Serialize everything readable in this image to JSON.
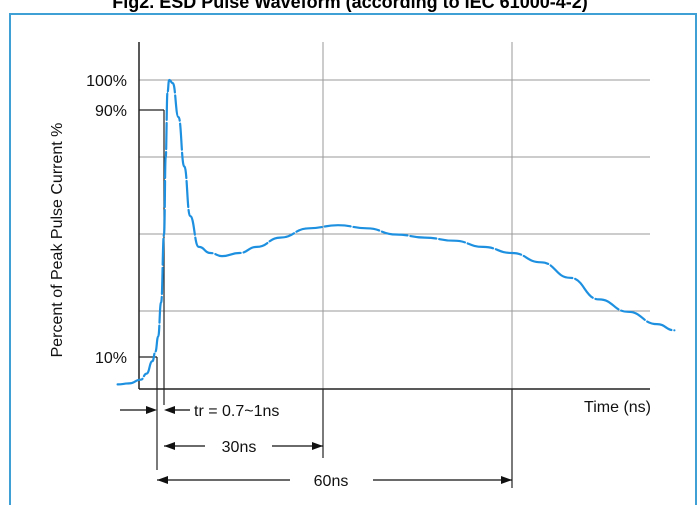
{
  "chart_data": {
    "type": "line",
    "title": "Fig2. ESD Pulse Waveform (according to IEC 61000-4-2)",
    "ylabel": "Percent of Peak Pulse Current %",
    "xlabel": "Time (ns)",
    "yticks": [
      "100%",
      "90%",
      "10%"
    ],
    "ytick_values": [
      100,
      90,
      10
    ],
    "xlim": [
      -10,
      130
    ],
    "ylim": [
      0,
      110
    ],
    "grid": true,
    "series": [
      {
        "color": "#1e90e0",
        "x": [
          -8,
          -6,
          -4,
          -3,
          -2,
          -1.5,
          -1,
          -0.5,
          0,
          0.3,
          0.6,
          0.9,
          1.5,
          2.5,
          3.5,
          4.5,
          6,
          8,
          10,
          13,
          16,
          20,
          25,
          30,
          35,
          40,
          45,
          50,
          55,
          60,
          65,
          70,
          75,
          80,
          85,
          88
        ],
        "y": [
          1.5,
          1.8,
          3,
          5,
          9,
          12,
          17,
          28,
          50,
          75,
          96,
          100,
          99,
          88,
          72,
          56,
          46,
          44,
          43,
          44,
          46,
          49,
          52,
          53,
          52,
          50,
          49,
          48,
          46,
          44,
          41,
          36,
          29,
          25,
          21,
          19
        ]
      }
    ],
    "annotations": {
      "rise_time": "tr = 0.7~1ns",
      "span_30": "30ns",
      "span_60": "60ns"
    }
  }
}
